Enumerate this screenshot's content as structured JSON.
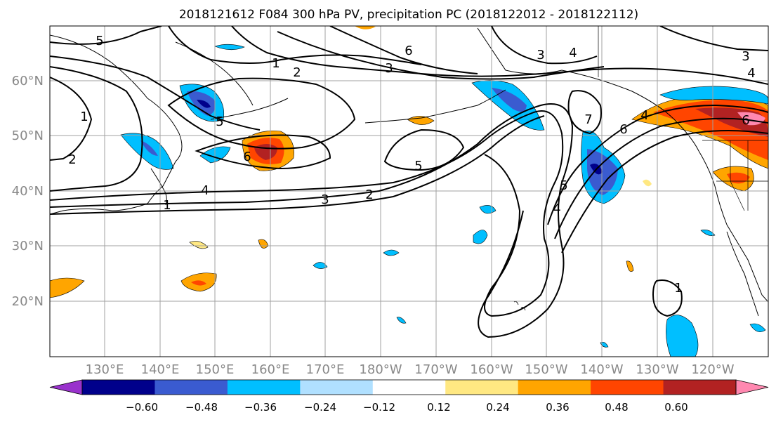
{
  "title": "2018121612 F084 300 hPa PV, precipitation PC (2018122012 - 2018122112)",
  "map": {
    "lon_labels": [
      "130°E",
      "140°E",
      "150°E",
      "160°E",
      "170°E",
      "180°W",
      "170°W",
      "160°W",
      "150°W",
      "140°W",
      "130°W",
      "120°W"
    ],
    "lat_labels": [
      "60°N",
      "50°N",
      "40°N",
      "30°N",
      "20°N"
    ],
    "contour_labels": [
      "5",
      "1",
      "2",
      "3",
      "6",
      "3",
      "4",
      "3",
      "4",
      "1",
      "5",
      "6",
      "2",
      "7",
      "6",
      "5",
      "4",
      "2",
      "3",
      "4",
      "5",
      "6",
      "1",
      "4",
      "1"
    ],
    "colors": {
      "land": "#ffffff",
      "grid": "#a0a0a0",
      "contour": "#000000",
      "tick_label": "#888888"
    }
  },
  "colorbar": {
    "tick_labels": [
      "−0.60",
      "−0.48",
      "−0.36",
      "−0.24",
      "−0.12",
      "0.12",
      "0.24",
      "0.36",
      "0.48",
      "0.60"
    ],
    "colors": [
      "#9932cc",
      "#00008b",
      "#3a5bd0",
      "#00bfff",
      "#b0e0ff",
      "#ffffff",
      "#ffe882",
      "#ffa500",
      "#ff4500",
      "#b22222",
      "#ff88b0"
    ]
  }
}
